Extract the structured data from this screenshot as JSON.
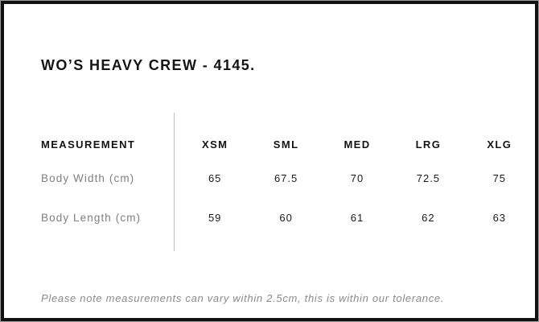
{
  "panel": {
    "title": "WO’S HEAVY CREW - 4145.",
    "border_color": "#111111",
    "background_color": "#ffffff"
  },
  "table": {
    "measurement_header": "MEASUREMENT",
    "size_headers": [
      "XSM",
      "SML",
      "MED",
      "LRG",
      "XLG"
    ],
    "rows": [
      {
        "label": "Body Width (cm)",
        "values": [
          "65",
          "67.5",
          "70",
          "72.5",
          "75"
        ]
      },
      {
        "label": "Body Length (cm)",
        "values": [
          "59",
          "60",
          "61",
          "62",
          "63"
        ]
      }
    ]
  },
  "footnote": "Please note measurements can vary within 2.5cm, this is within our tolerance.",
  "colors": {
    "heading_text": "#141414",
    "value_text": "#1a1a1a",
    "label_text": "#7f7f7f",
    "footnote_text": "#8a8a8a",
    "divider": "#bdbdbd"
  }
}
